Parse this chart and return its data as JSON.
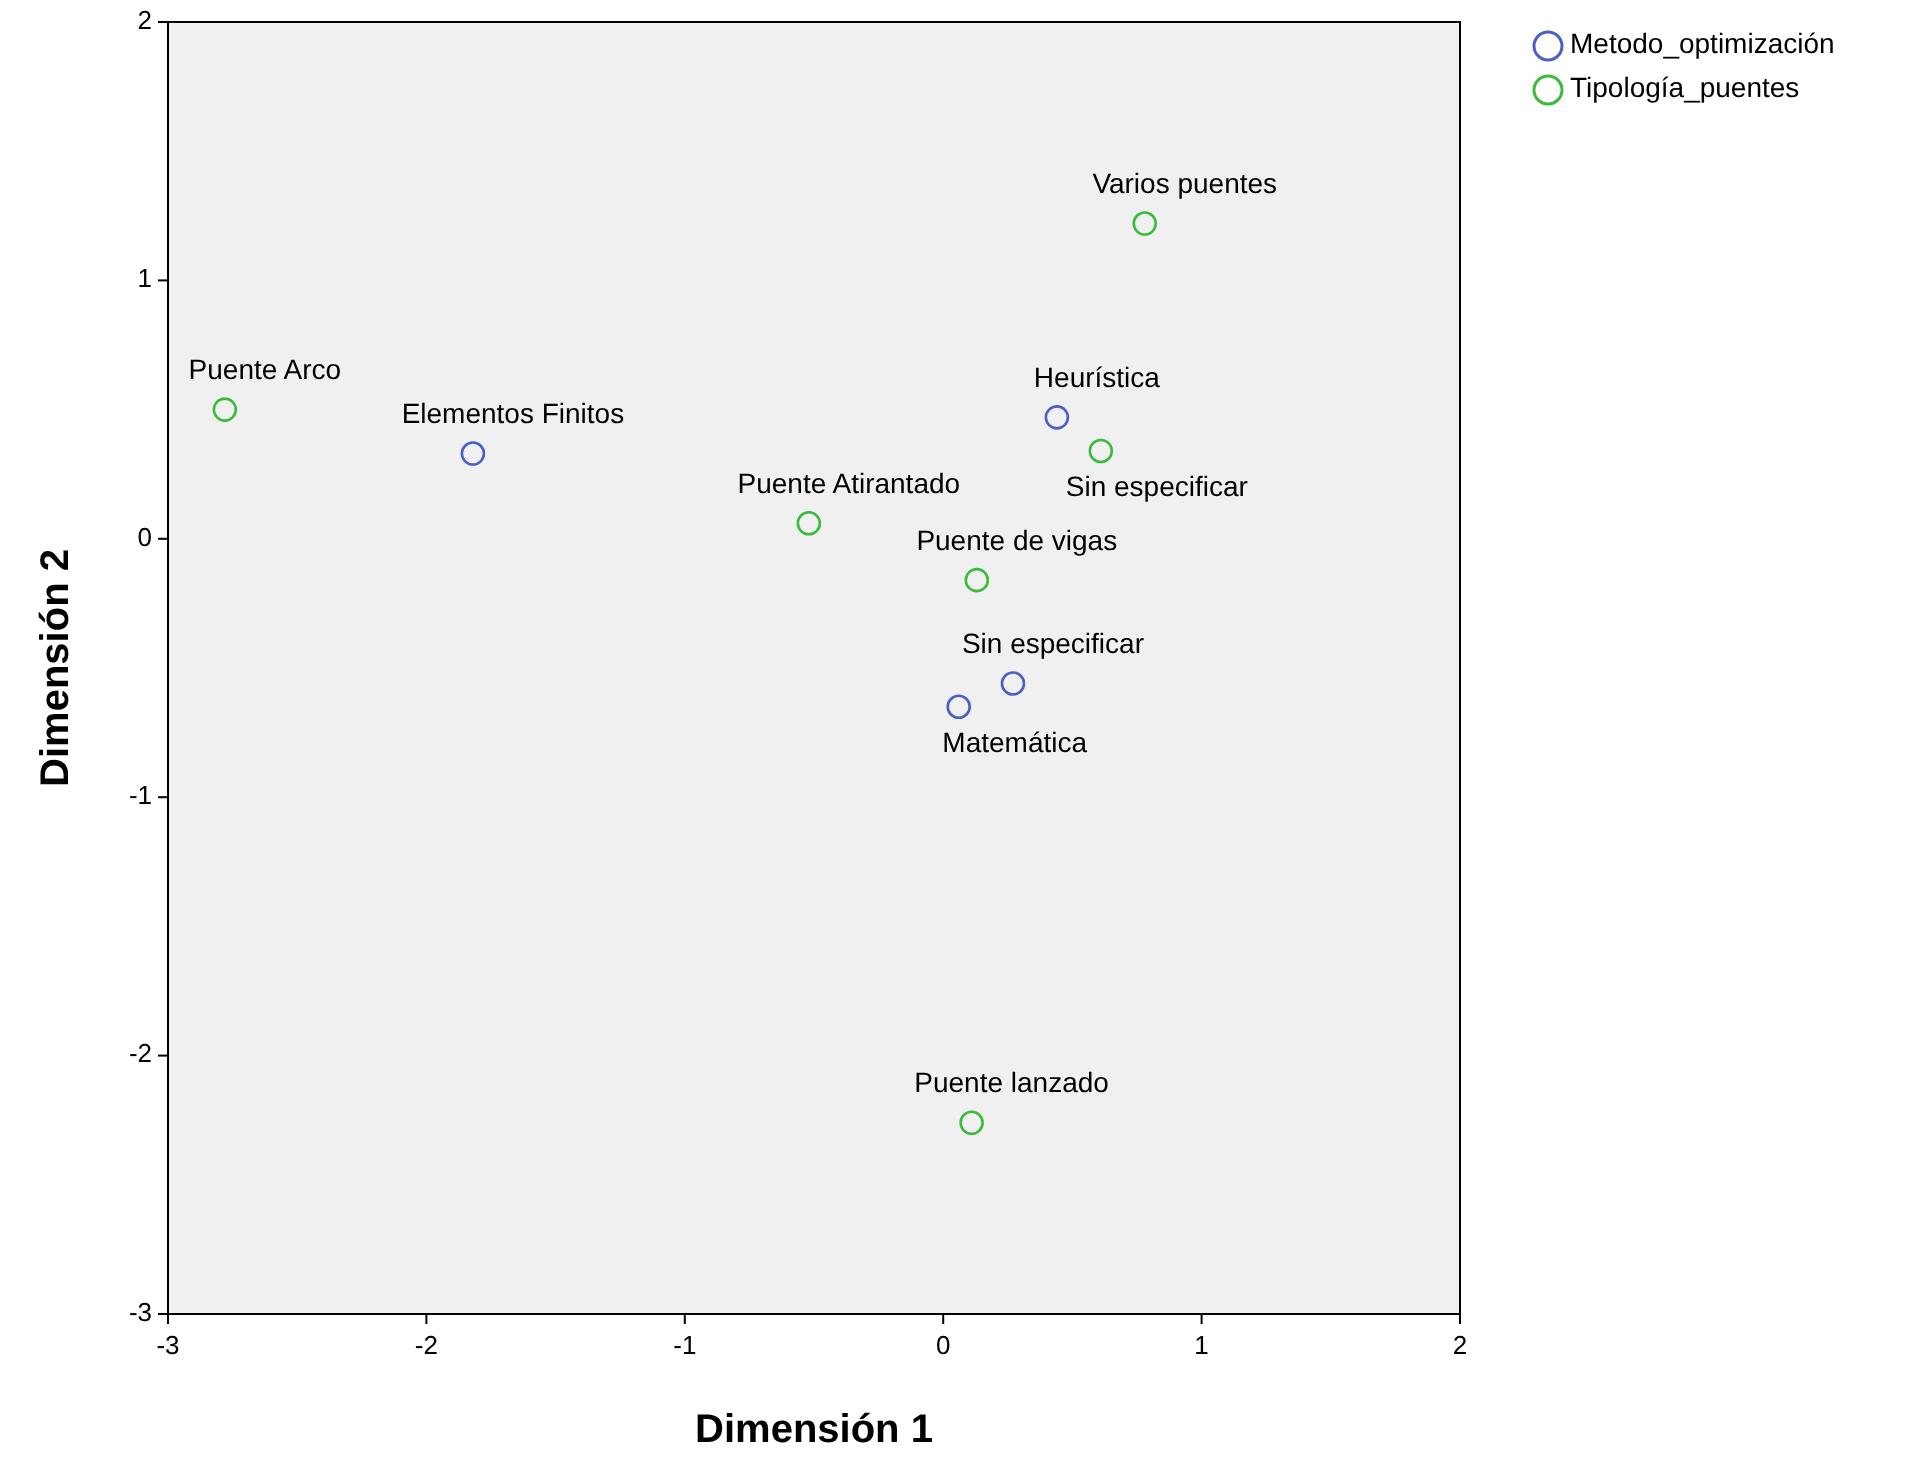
{
  "chart_data": {
    "type": "scatter",
    "xlabel": "Dimensión 1",
    "ylabel": "Dimensión 2",
    "xlim": [
      -3,
      2
    ],
    "ylim": [
      -3,
      2
    ],
    "xticks": [
      -3,
      -2,
      -1,
      0,
      1,
      2
    ],
    "yticks": [
      -3,
      -2,
      -1,
      0,
      1,
      2
    ],
    "marker": "circle",
    "legend": "top right",
    "series": [
      {
        "name": "Metodo_optimización",
        "color": "#4b5fc4",
        "x": [
          -1.82,
          0.44,
          0.27,
          0.06
        ],
        "values": [
          0.33,
          0.47,
          -0.56,
          -0.65
        ]
      },
      {
        "name": "Tipología_puentes",
        "color": "#3cba3c",
        "x": [
          -2.78,
          0.78,
          0.61,
          -0.52,
          0.13,
          0.11
        ],
        "values": [
          0.5,
          1.22,
          0.34,
          0.06,
          -0.16,
          -2.26
        ]
      }
    ],
    "annotations": [
      {
        "text": "Elementos Finitos",
        "x": -1.82,
        "y": 0.33
      },
      {
        "text": "Heurística",
        "x": 0.44,
        "y": 0.47
      },
      {
        "text": "Sin especificar",
        "x": 0.27,
        "y": -0.56
      },
      {
        "text": "Matemática",
        "x": 0.06,
        "y": -0.65
      },
      {
        "text": "Puente Arco",
        "x": -2.78,
        "y": 0.5
      },
      {
        "text": "Varios puentes",
        "x": 0.78,
        "y": 1.22
      },
      {
        "text": "Sin especificar",
        "x": 0.61,
        "y": 0.34
      },
      {
        "text": "Puente Atirantado",
        "x": -0.52,
        "y": 0.06
      },
      {
        "text": "Puente de vigas",
        "x": 0.13,
        "y": -0.16
      },
      {
        "text": "Puente lanzado",
        "x": 0.11,
        "y": -2.26
      }
    ]
  }
}
